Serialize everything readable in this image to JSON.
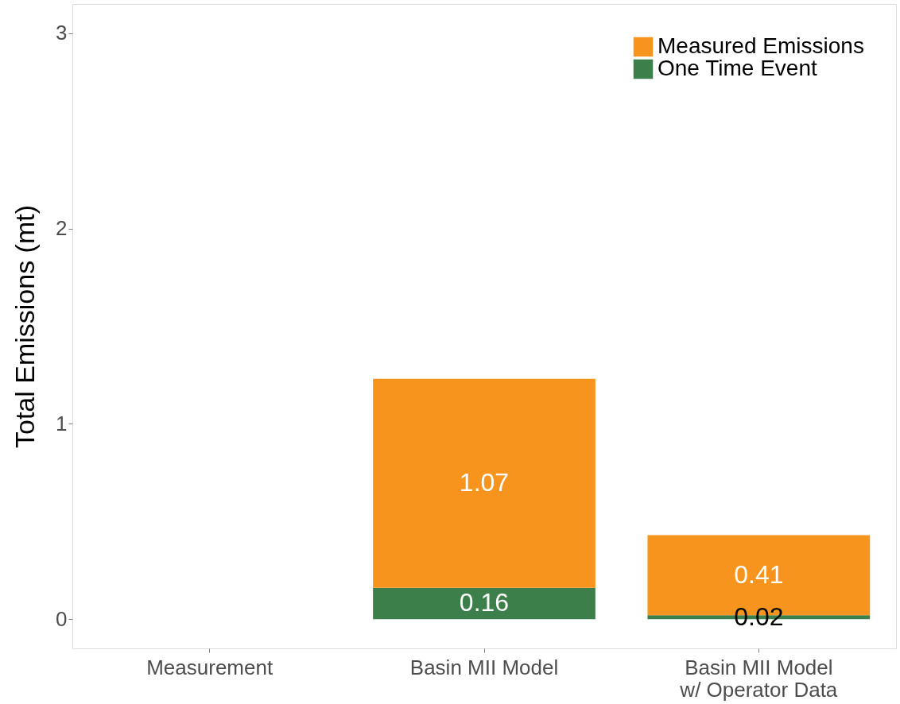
{
  "chart_data": {
    "type": "bar",
    "stacked": true,
    "ylabel": "Total Emissions (mt)",
    "categories": [
      "Measurement",
      "Basin MII Model",
      "Basin MII Model\nw/ Operator Data"
    ],
    "series": [
      {
        "name": "One Time Event",
        "color": "#3d7f4a",
        "values": [
          0,
          0.16,
          0.02
        ],
        "value_labels": [
          null,
          "0.16",
          "0.02"
        ]
      },
      {
        "name": "Measured Emissions",
        "color": "#f7941d",
        "values": [
          0,
          1.07,
          0.41
        ],
        "value_labels": [
          null,
          "1.07",
          "0.41"
        ]
      }
    ],
    "ylim": [
      -0.15,
      3.15
    ],
    "yticks": [
      0,
      1,
      2,
      3
    ],
    "grid": false,
    "legend": "top right"
  }
}
